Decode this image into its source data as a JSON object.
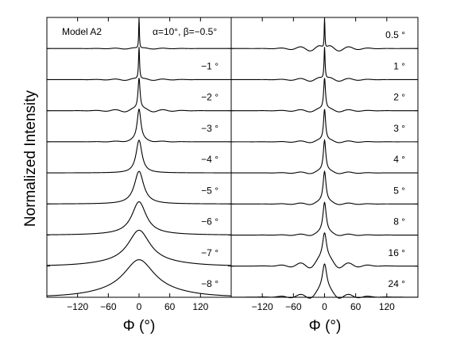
{
  "figure": {
    "y_axis_label": "Normalized Intensity",
    "model_label": "Model A2",
    "parameter_label": "α=10°, β=−0.5°"
  },
  "chart_data": [
    {
      "type": "line",
      "panel": "left",
      "xlabel": "Φ (°)",
      "ylabel": "Normalized Intensity",
      "xlim": [
        -180,
        180
      ],
      "xticks": [
        -120,
        -60,
        0,
        60,
        120
      ],
      "xtick_labels": [
        "−120",
        "−60",
        "0",
        "60",
        "120"
      ],
      "series": [
        {
          "name": "−0.5°",
          "label": "",
          "peak_width_deg": 0.8,
          "peak_height": 1.0,
          "baseline_level": 0.0,
          "sidelobe_amplitude": 0.02
        },
        {
          "name": "−1°",
          "label": "−1 °",
          "peak_width_deg": 1.2,
          "peak_height": 1.0,
          "baseline_level": 0.0,
          "sidelobe_amplitude": 0.03
        },
        {
          "name": "−2°",
          "label": "−2 °",
          "peak_width_deg": 2.5,
          "peak_height": 1.0,
          "baseline_level": 0.0,
          "sidelobe_amplitude": 0.05
        },
        {
          "name": "−3°",
          "label": "−3 °",
          "peak_width_deg": 4.5,
          "peak_height": 1.0,
          "baseline_level": 0.0,
          "sidelobe_amplitude": 0.02
        },
        {
          "name": "−4°",
          "label": "−4 °",
          "peak_width_deg": 7,
          "peak_height": 1.0,
          "baseline_level": 0.0,
          "sidelobe_amplitude": 0.0
        },
        {
          "name": "−5°",
          "label": "−5 °",
          "peak_width_deg": 11,
          "peak_height": 1.0,
          "baseline_level": 0.0,
          "sidelobe_amplitude": 0.0
        },
        {
          "name": "−6°",
          "label": "−6 °",
          "peak_width_deg": 17,
          "peak_height": 1.0,
          "baseline_level": 0.02,
          "sidelobe_amplitude": 0.0
        },
        {
          "name": "−7°",
          "label": "−7 °",
          "peak_width_deg": 26,
          "peak_height": 1.0,
          "baseline_level": 0.1,
          "sidelobe_amplitude": 0.0
        },
        {
          "name": "−8°",
          "label": "−8 °",
          "peak_width_deg": 36,
          "peak_height": 1.0,
          "baseline_level": 0.15,
          "sidelobe_amplitude": 0.0
        }
      ]
    },
    {
      "type": "line",
      "panel": "right",
      "xlabel": "Φ (°)",
      "xlim": [
        -180,
        180
      ],
      "xticks": [
        -120,
        -60,
        0,
        60,
        120
      ],
      "xtick_labels": [
        "−120",
        "−60",
        "0",
        "60",
        "120"
      ],
      "series": [
        {
          "name": "0.5°",
          "label": "0.5 °",
          "peak_width_deg": 0.8,
          "peak_height": 1.0,
          "baseline_level": 0.0,
          "sidelobe_amplitude": 0.09
        },
        {
          "name": "1°",
          "label": "1 °",
          "peak_width_deg": 1.2,
          "peak_height": 1.0,
          "baseline_level": 0.0,
          "sidelobe_amplitude": 0.06
        },
        {
          "name": "2°",
          "label": "2 °",
          "peak_width_deg": 2.2,
          "peak_height": 1.0,
          "baseline_level": 0.0,
          "sidelobe_amplitude": 0.05
        },
        {
          "name": "3°",
          "label": "3 °",
          "peak_width_deg": 2.5,
          "peak_height": 1.0,
          "baseline_level": 0.0,
          "sidelobe_amplitude": 0.04
        },
        {
          "name": "4°",
          "label": "4 °",
          "peak_width_deg": 3,
          "peak_height": 1.0,
          "baseline_level": 0.0,
          "sidelobe_amplitude": 0.04
        },
        {
          "name": "5°",
          "label": "5 °",
          "peak_width_deg": 3.5,
          "peak_height": 1.0,
          "baseline_level": 0.0,
          "sidelobe_amplitude": 0.04
        },
        {
          "name": "8°",
          "label": "8 °",
          "peak_width_deg": 4,
          "peak_height": 1.0,
          "baseline_level": 0.0,
          "sidelobe_amplitude": 0.04
        },
        {
          "name": "16°",
          "label": "16 °",
          "peak_width_deg": 5,
          "peak_height": 1.0,
          "baseline_level": 0.02,
          "sidelobe_amplitude": 0.12
        },
        {
          "name": "24°",
          "label": "24 °",
          "peak_width_deg": 5.5,
          "peak_height": 1.0,
          "baseline_level": 0.02,
          "sidelobe_amplitude": 0.1
        }
      ]
    }
  ]
}
